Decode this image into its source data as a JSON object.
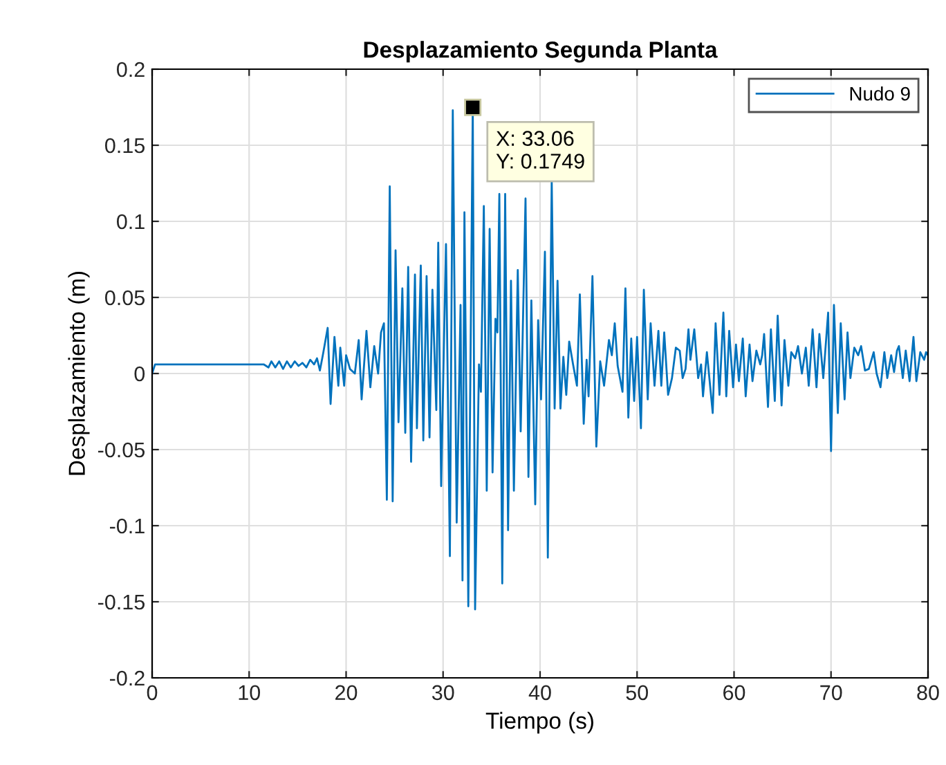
{
  "chart_data": {
    "type": "line",
    "title": "Desplazamiento Segunda Planta",
    "xlabel": "Tiempo (s)",
    "ylabel": "Desplazamiento (m)",
    "xlim": [
      0,
      80
    ],
    "ylim": [
      -0.2,
      0.2
    ],
    "xticks": [
      0,
      10,
      20,
      30,
      40,
      50,
      60,
      70,
      80
    ],
    "yticks": [
      -0.2,
      -0.15,
      -0.1,
      -0.05,
      0,
      0.05,
      0.1,
      0.15,
      0.2
    ],
    "grid": true,
    "legend": "top right",
    "annotations": [
      {
        "text": "X: 33.06\nY: 0.1749",
        "x": 33.06,
        "y": 0.1749
      }
    ],
    "series": [
      {
        "name": "Nudo 9",
        "color": "#0072bd",
        "x": [
          0,
          0.3,
          11.5,
          12,
          12.3,
          12.7,
          13.1,
          13.5,
          13.9,
          14.3,
          14.7,
          15.1,
          15.5,
          15.9,
          16.3,
          16.7,
          17.0,
          17.3,
          17.6,
          18.1,
          18.4,
          18.8,
          19.2,
          19.4,
          19.8,
          20.0,
          20.4,
          20.9,
          21.3,
          21.6,
          22.1,
          22.5,
          22.9,
          23.3,
          23.6,
          23.9,
          24.2,
          24.5,
          24.8,
          25.1,
          25.4,
          25.8,
          26.1,
          26.4,
          26.7,
          27.1,
          27.3,
          27.7,
          27.96,
          28.3,
          28.6,
          28.9,
          29.3,
          29.5,
          29.8,
          30.1,
          30.3,
          30.7,
          31.0,
          31.4,
          31.8,
          32.0,
          32.2,
          32.6,
          33.06,
          33.3,
          33.7,
          33.9,
          34.2,
          34.5,
          34.8,
          35.1,
          35.4,
          35.6,
          35.8,
          36.1,
          36.4,
          36.7,
          37.0,
          37.3,
          37.7,
          38.0,
          38.5,
          38.8,
          39.1,
          39.5,
          39.8,
          40.1,
          40.5,
          40.8,
          41.2,
          41.5,
          41.8,
          42.1,
          42.4,
          42.7,
          43.0,
          43.4,
          43.8,
          44.1,
          44.5,
          44.8,
          45.0,
          45.4,
          45.8,
          46.2,
          46.6,
          47.1,
          47.4,
          47.7,
          48.0,
          48.5,
          48.8,
          49.1,
          49.4,
          49.7,
          50.0,
          50.4,
          50.7,
          51.1,
          51.4,
          51.8,
          52.2,
          52.5,
          52.8,
          53.2,
          53.6,
          54.0,
          54.4,
          54.7,
          55.0,
          55.3,
          55.5,
          55.9,
          56.3,
          56.6,
          56.8,
          57.2,
          57.8,
          58.1,
          58.5,
          58.9,
          59.2,
          59.5,
          59.9,
          60.2,
          60.5,
          60.9,
          61.2,
          61.6,
          61.9,
          62.3,
          62.7,
          62.9,
          63.1,
          63.5,
          63.8,
          64.2,
          64.5,
          64.9,
          65.2,
          65.6,
          65.9,
          66.3,
          66.6,
          67.0,
          67.4,
          67.7,
          68.1,
          68.5,
          68.8,
          69.2,
          69.7,
          70.0,
          70.3,
          70.7,
          71.0,
          71.4,
          71.7,
          72.0,
          72.4,
          72.8,
          73.1,
          73.5,
          73.9,
          74.4,
          74.7,
          75.1,
          75.5,
          75.8,
          76.2,
          76.5,
          76.8,
          77.0,
          77.4,
          77.7,
          78.1,
          78.5,
          78.8,
          79.2,
          79.6,
          79.8,
          80
        ],
        "values": [
          0,
          0.006,
          0.006,
          0.004,
          0.008,
          0.004,
          0.008,
          0.003,
          0.008,
          0.004,
          0.008,
          0.005,
          0.007,
          0.004,
          0.009,
          0.006,
          0.01,
          0.002,
          0.012,
          0.03,
          -0.02,
          0.024,
          -0.008,
          0.017,
          -0.008,
          0.012,
          0.003,
          0,
          0.022,
          -0.017,
          0.028,
          -0.009,
          0.018,
          0,
          0.027,
          0.033,
          -0.083,
          0.123,
          -0.084,
          0.081,
          -0.032,
          0.056,
          -0.039,
          0.07,
          -0.058,
          0.065,
          -0.036,
          0.071,
          -0.044,
          0.064,
          -0.042,
          0.055,
          -0.024,
          0.086,
          -0.074,
          0.024,
          0.085,
          -0.12,
          0.173,
          -0.098,
          0.045,
          -0.136,
          0.106,
          -0.153,
          0.1749,
          -0.155,
          0.006,
          -0.012,
          0.11,
          -0.077,
          0.095,
          -0.065,
          0.036,
          0.027,
          0.118,
          -0.138,
          0.118,
          -0.103,
          0.061,
          -0.077,
          0.068,
          -0.038,
          0.115,
          -0.068,
          0.048,
          -0.086,
          0.035,
          -0.017,
          0.08,
          -0.121,
          0.127,
          -0.023,
          0.061,
          -0.023,
          0.011,
          -0.014,
          0.021,
          0.006,
          -0.008,
          0.052,
          -0.033,
          0.009,
          -0.015,
          0.064,
          -0.048,
          0.008,
          -0.008,
          0.022,
          0.012,
          0.033,
          0.005,
          -0.012,
          0.056,
          -0.029,
          0.023,
          -0.018,
          0.024,
          -0.036,
          0.055,
          -0.017,
          0.033,
          -0.008,
          0.028,
          -0.008,
          0.027,
          -0.014,
          -0.003,
          0.017,
          0.015,
          -0.003,
          0.003,
          0.029,
          0.009,
          0.029,
          -0.003,
          0.006,
          -0.015,
          0.014,
          -0.026,
          0.033,
          -0.014,
          0.04,
          -0.015,
          0.028,
          -0.009,
          0.019,
          -0.005,
          0.023,
          -0.015,
          0.019,
          -0.005,
          0.015,
          0.006,
          0.012,
          0.026,
          -0.022,
          0.029,
          -0.018,
          0.038,
          -0.021,
          0.022,
          -0.008,
          0.014,
          0.01,
          0.018,
          0,
          0.017,
          -0.008,
          0.029,
          -0.009,
          0.026,
          -0.003,
          0.04,
          -0.051,
          0.045,
          -0.026,
          0.033,
          -0.017,
          0.027,
          -0.003,
          0.017,
          0.012,
          0.018,
          0.002,
          0.003,
          0.014,
          0,
          -0.009,
          0.014,
          -0.003,
          0.012,
          0.001,
          0.015,
          0.018,
          -0.003,
          0.015,
          -0.005,
          0.024,
          -0.005,
          0.014,
          0.009,
          0.014,
          0.012
        ]
      }
    ]
  }
}
